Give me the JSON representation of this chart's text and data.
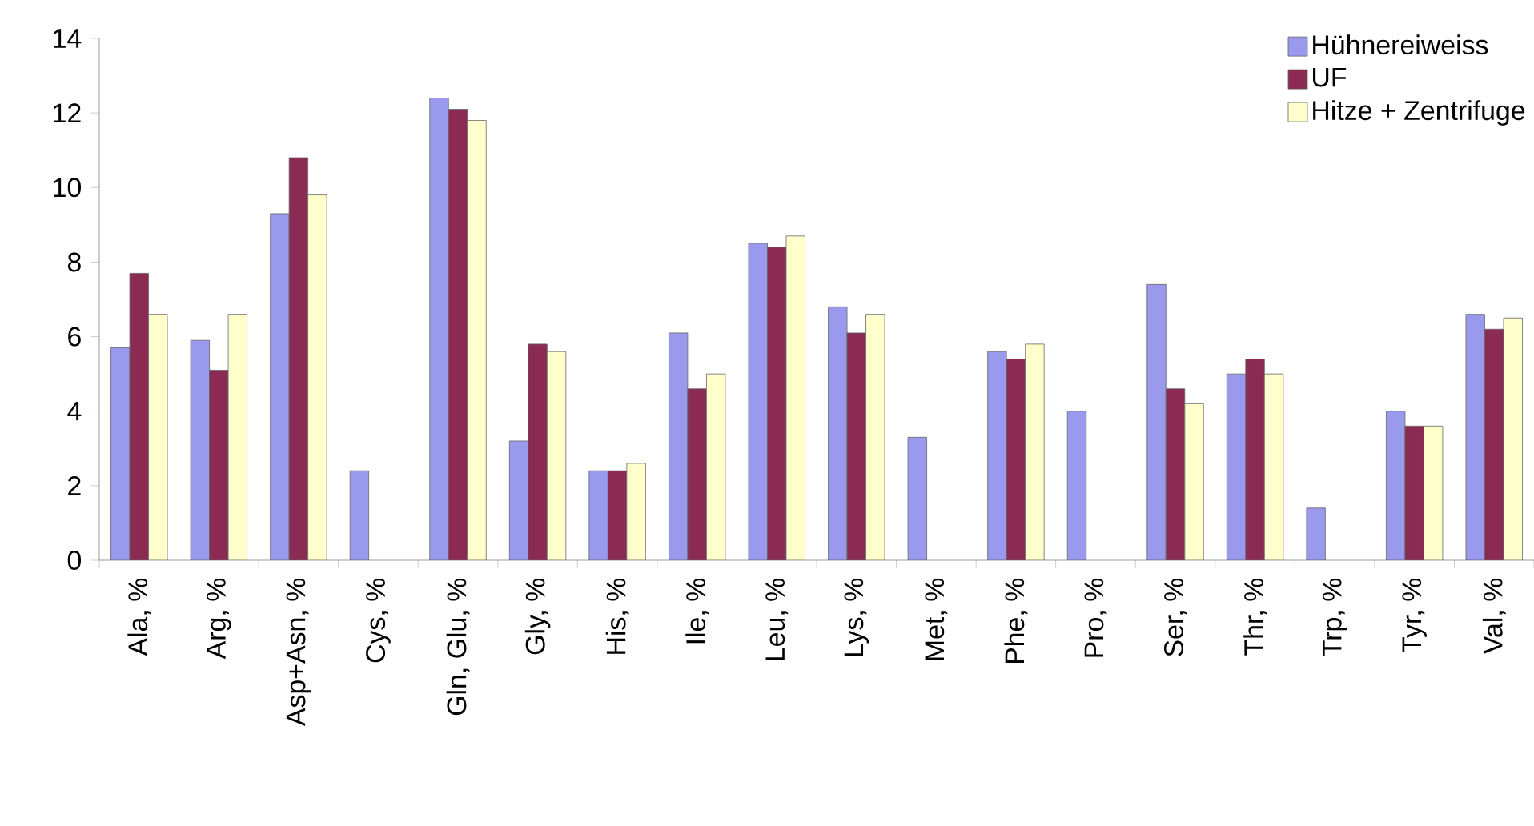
{
  "chart_data": {
    "type": "bar",
    "categories": [
      "Ala, %",
      "Arg, %",
      "Asp+Asn, %",
      "Cys, %",
      "Gln, Glu, %",
      "Gly, %",
      "His, %",
      "Ile, %",
      "Leu, %",
      "Lys, %",
      "Met, %",
      "Phe, %",
      "Pro, %",
      "Ser, %",
      "Thr, %",
      "Trp, %",
      "Tyr, %",
      "Val, %"
    ],
    "series": [
      {
        "name": "Hühnereiweiss",
        "color": "#9999ee",
        "values": [
          5.7,
          5.9,
          9.3,
          2.4,
          12.4,
          3.2,
          2.4,
          6.1,
          8.5,
          6.8,
          3.3,
          5.6,
          4.0,
          7.4,
          5.0,
          1.4,
          4.0,
          6.6
        ]
      },
      {
        "name": "UF",
        "color": "#8b2a52",
        "values": [
          7.7,
          5.1,
          10.8,
          null,
          12.1,
          5.8,
          2.4,
          4.6,
          8.4,
          6.1,
          null,
          5.4,
          null,
          4.6,
          5.4,
          null,
          3.6,
          6.2
        ]
      },
      {
        "name": "Hitze + Zentrifuge",
        "color": "#ffffcc",
        "values": [
          6.6,
          6.6,
          9.8,
          null,
          11.8,
          5.6,
          2.6,
          5.0,
          8.7,
          6.6,
          null,
          5.8,
          null,
          4.2,
          5.0,
          null,
          3.6,
          6.5
        ]
      }
    ],
    "ylim": [
      0,
      14
    ],
    "yticks": [
      0,
      2,
      4,
      6,
      8,
      10,
      12,
      14
    ],
    "grid": false,
    "legend": "top right"
  }
}
